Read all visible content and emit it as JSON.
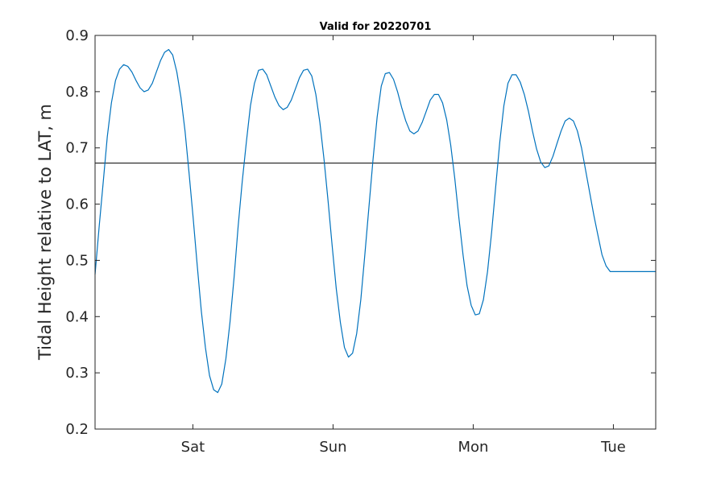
{
  "chart_data": {
    "type": "line",
    "title": "Valid for 20220701",
    "xlabel": "",
    "ylabel": "Tidal Height relative to LAT, m",
    "xlim": [
      0,
      96
    ],
    "ylim": [
      0.2,
      0.9
    ],
    "x_ticks": [
      {
        "x": 16.75,
        "label": "Sat"
      },
      {
        "x": 40.75,
        "label": "Sun"
      },
      {
        "x": 64.75,
        "label": "Mon"
      },
      {
        "x": 88.75,
        "label": "Tue"
      }
    ],
    "y_ticks": [
      {
        "y": 0.2,
        "label": "0.2"
      },
      {
        "y": 0.3,
        "label": "0.3"
      },
      {
        "y": 0.4,
        "label": "0.4"
      },
      {
        "y": 0.5,
        "label": "0.5"
      },
      {
        "y": 0.6,
        "label": "0.6"
      },
      {
        "y": 0.7,
        "label": "0.7"
      },
      {
        "y": 0.8,
        "label": "0.8"
      },
      {
        "y": 0.9,
        "label": "0.9"
      }
    ],
    "reference_line": {
      "y": 0.673,
      "color": "#000000"
    },
    "grid": false,
    "series": [
      {
        "color": "#0072bd",
        "x": [
          0,
          0.7,
          1.4,
          2.1,
          2.8,
          3.5,
          4.2,
          4.9,
          5.6,
          6.3,
          7.0,
          7.7,
          8.4,
          9.1,
          9.8,
          10.5,
          11.2,
          11.9,
          12.6,
          13.3,
          14.0,
          14.7,
          15.4,
          16.1,
          16.8,
          17.5,
          18.2,
          18.9,
          19.6,
          20.3,
          21.0,
          21.7,
          22.4,
          23.1,
          23.8,
          24.5,
          25.2,
          25.9,
          26.6,
          27.3,
          28.0,
          28.7,
          29.4,
          30.1,
          30.8,
          31.5,
          32.2,
          32.9,
          33.6,
          34.3,
          35.0,
          35.7,
          36.4,
          37.1,
          37.8,
          38.5,
          39.2,
          39.9,
          40.6,
          41.3,
          42.0,
          42.7,
          43.4,
          44.1,
          44.8,
          45.5,
          46.2,
          46.9,
          47.6,
          48.3,
          49.0,
          49.7,
          50.4,
          51.1,
          51.8,
          52.5,
          53.2,
          53.9,
          54.6,
          55.3,
          56.0,
          56.7,
          57.4,
          58.1,
          58.8,
          59.5,
          60.2,
          60.9,
          61.6,
          62.3,
          63.0,
          63.7,
          64.4,
          65.1,
          65.8,
          66.5,
          67.2,
          67.9,
          68.6,
          69.3,
          70.0,
          70.7,
          71.4,
          72.1,
          72.8,
          73.5,
          74.2,
          74.9,
          75.6,
          76.3,
          77.0,
          77.7,
          78.4,
          79.1,
          79.8,
          80.5,
          81.2,
          81.9,
          82.6,
          83.3,
          84.0,
          84.7,
          85.4,
          86.1,
          86.8,
          87.5,
          88.2,
          88.9,
          89.6,
          90.3,
          91.0,
          91.7,
          92.4,
          93.1,
          93.8,
          94.5,
          95.2,
          96.0
        ],
        "y": [
          0.475,
          0.56,
          0.64,
          0.72,
          0.78,
          0.82,
          0.84,
          0.848,
          0.845,
          0.835,
          0.82,
          0.807,
          0.8,
          0.803,
          0.815,
          0.835,
          0.855,
          0.87,
          0.875,
          0.865,
          0.835,
          0.79,
          0.73,
          0.655,
          0.575,
          0.49,
          0.41,
          0.345,
          0.295,
          0.27,
          0.265,
          0.28,
          0.325,
          0.39,
          0.47,
          0.56,
          0.64,
          0.71,
          0.775,
          0.815,
          0.838,
          0.84,
          0.83,
          0.81,
          0.79,
          0.775,
          0.768,
          0.772,
          0.785,
          0.805,
          0.825,
          0.838,
          0.84,
          0.828,
          0.795,
          0.745,
          0.68,
          0.605,
          0.525,
          0.45,
          0.39,
          0.345,
          0.328,
          0.335,
          0.37,
          0.43,
          0.51,
          0.595,
          0.68,
          0.755,
          0.81,
          0.832,
          0.834,
          0.822,
          0.8,
          0.772,
          0.748,
          0.73,
          0.725,
          0.73,
          0.745,
          0.765,
          0.785,
          0.795,
          0.795,
          0.78,
          0.75,
          0.705,
          0.645,
          0.575,
          0.51,
          0.455,
          0.42,
          0.403,
          0.405,
          0.43,
          0.48,
          0.55,
          0.63,
          0.71,
          0.775,
          0.815,
          0.83,
          0.83,
          0.817,
          0.795,
          0.765,
          0.73,
          0.698,
          0.675,
          0.665,
          0.668,
          0.685,
          0.708,
          0.73,
          0.748,
          0.753,
          0.748,
          0.73,
          0.7,
          0.66,
          0.62,
          0.58,
          0.545,
          0.51,
          0.49,
          0.48,
          0.48,
          0.48,
          0.48,
          0.48,
          0.48,
          0.48,
          0.48,
          0.48,
          0.48,
          0.48,
          0.48
        ]
      }
    ]
  }
}
